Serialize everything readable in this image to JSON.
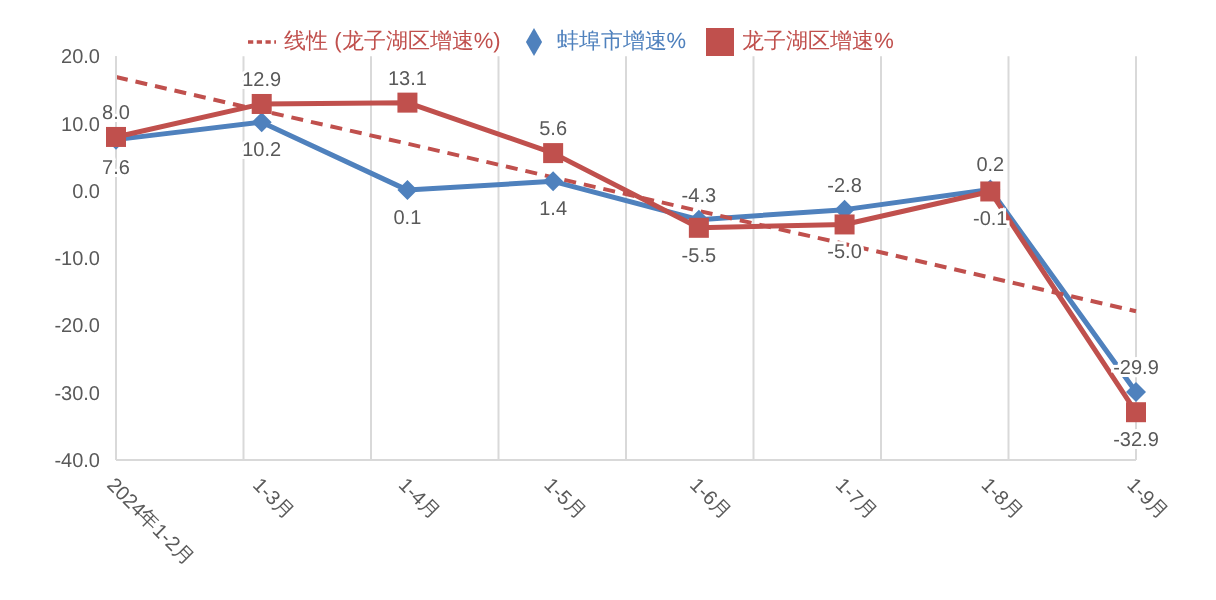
{
  "chart_data": {
    "type": "line",
    "categories": [
      "2024年1-2月",
      "1-3月",
      "1-4月",
      "1-5月",
      "1-6月",
      "1-7月",
      "1-8月",
      "1-9月"
    ],
    "series": [
      {
        "name": "蚌埠市增速%",
        "color": "#4f81bd",
        "marker": "diamond",
        "values": [
          7.6,
          10.2,
          0.1,
          1.4,
          -4.3,
          -2.8,
          0.2,
          -29.9
        ],
        "value_labels": [
          "7.6",
          "10.2",
          "0.1",
          "1.4",
          "-4.3",
          "-2.8",
          "0.2",
          "-29.9"
        ]
      },
      {
        "name": "龙子湖区增速%",
        "color": "#c0504d",
        "marker": "square",
        "values": [
          8.0,
          12.9,
          13.1,
          5.6,
          -5.5,
          -5.0,
          -0.1,
          -32.9
        ],
        "value_labels": [
          "8.0",
          "12.9",
          "13.1",
          "5.6",
          "-5.5",
          "-5.0",
          "-0.1",
          "-32.9"
        ]
      },
      {
        "name": "线性 (龙子湖区增速%)",
        "type": "line",
        "color": "#c0504d",
        "line_style": "dashed",
        "marker": "none",
        "values": [
          16.9,
          11.9,
          7.0,
          2.0,
          -3.0,
          -7.9,
          -12.9,
          -17.9
        ]
      }
    ],
    "ylim": [
      -40,
      20
    ],
    "yticks": [
      {
        "value": -40,
        "label": "-40.0"
      },
      {
        "value": -30,
        "label": "-30.0"
      },
      {
        "value": -20,
        "label": "-20.0"
      },
      {
        "value": -10,
        "label": "-10.0"
      },
      {
        "value": 0,
        "label": "0.0"
      },
      {
        "value": 10,
        "label": "10.0"
      },
      {
        "value": 20,
        "label": "20.0"
      }
    ],
    "grid": "x",
    "legend": "top"
  }
}
